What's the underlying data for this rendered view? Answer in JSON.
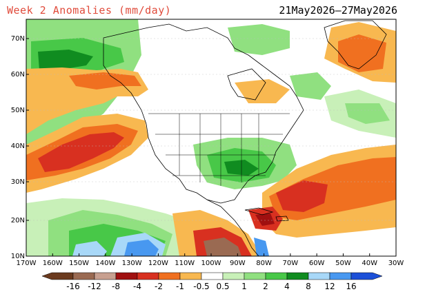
{
  "title": "Week 2 Anomalies (mm/day)",
  "date_range": "21May2026–27May2026",
  "lat_labels": [
    "70N",
    "60N",
    "50N",
    "40N",
    "30N",
    "20N",
    "10N"
  ],
  "lon_labels": [
    "170W",
    "160W",
    "150W",
    "140W",
    "130W",
    "120W",
    "110W",
    "100W",
    "90W",
    "80W",
    "70W",
    "60W",
    "50W",
    "40W",
    "30W"
  ],
  "colorbar": {
    "labels": [
      "-16",
      "-12",
      "-8",
      "-4",
      "-2",
      "-1",
      "-0.5",
      "0.5",
      "1",
      "2",
      "4",
      "8",
      "12",
      "16"
    ],
    "colors": [
      "#6b3a1e",
      "#9a6a52",
      "#c8a090",
      "#a01010",
      "#d83020",
      "#f07020",
      "#f8b850",
      "#ffffff",
      "#c8f0b8",
      "#90e080",
      "#48c848",
      "#108c20",
      "#a8d8f8",
      "#4898f0",
      "#1c50d8"
    ]
  },
  "colors": {
    "land_outline": "#000000",
    "title_accent": "#e04a3a"
  }
}
